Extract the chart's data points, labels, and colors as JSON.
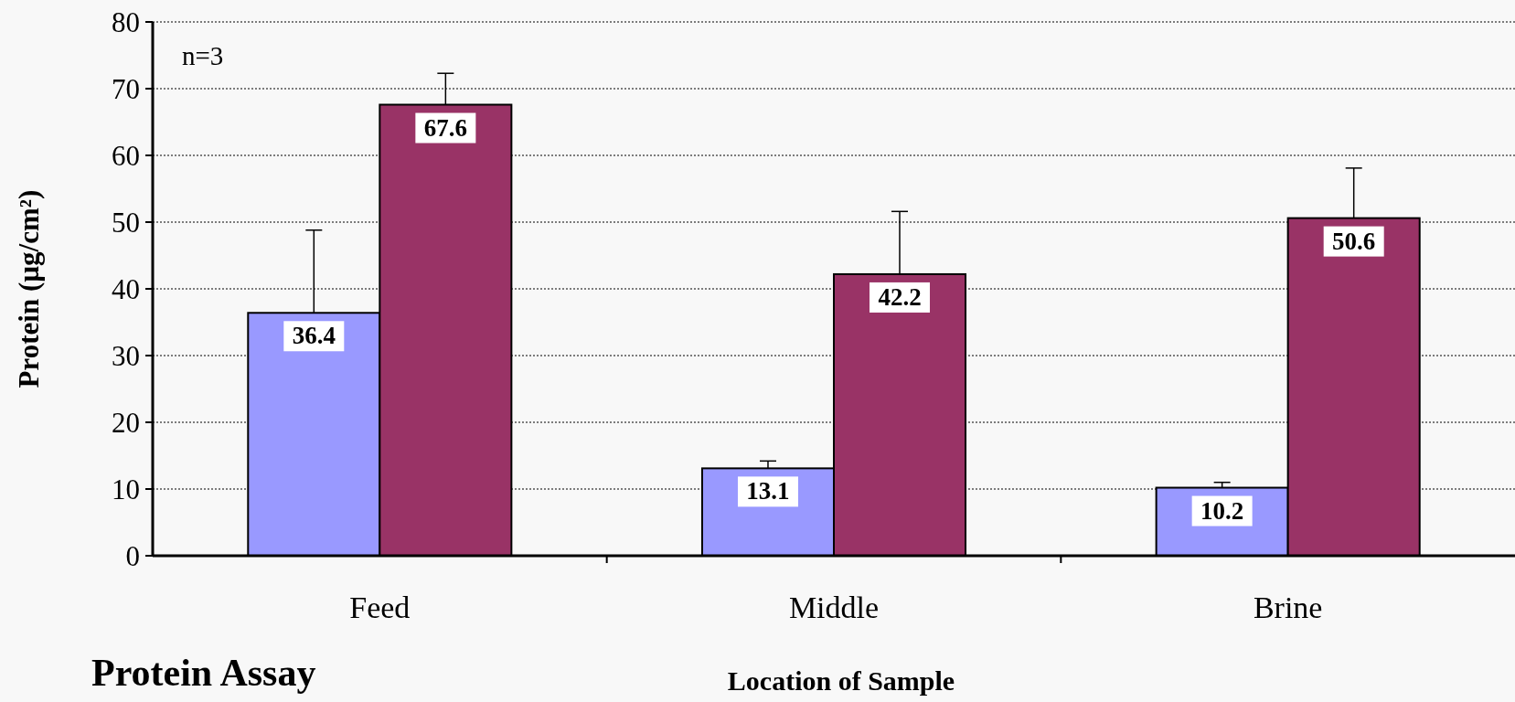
{
  "chart_data": {
    "type": "bar",
    "title": "Protein Assay",
    "xlabel": "Location of Sample",
    "ylabel": "Protein (µg/cm²)",
    "categories": [
      "Feed",
      "Middle",
      "Brine"
    ],
    "series": [
      {
        "color": "#9999ff",
        "values": [
          36.4,
          13.1,
          10.2
        ],
        "errors": [
          [
            36.4,
            48.8
          ],
          [
            13.1,
            14.2
          ],
          [
            10.2,
            11.0
          ]
        ]
      },
      {
        "color": "#993366",
        "values": [
          67.6,
          42.2,
          50.6
        ],
        "errors": [
          [
            67.6,
            72.3
          ],
          [
            42.2,
            51.6
          ],
          [
            50.6,
            58.1
          ]
        ]
      }
    ],
    "ylim": [
      0,
      80
    ],
    "yticks": [
      0,
      10,
      20,
      30,
      40,
      50,
      60,
      70,
      80
    ],
    "grid": "y",
    "data_labels": true,
    "annotations": [
      "n=3"
    ]
  }
}
